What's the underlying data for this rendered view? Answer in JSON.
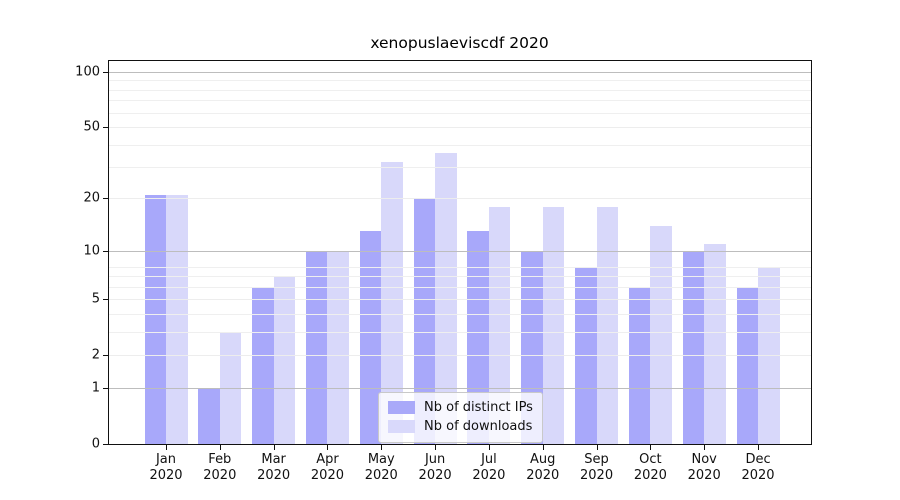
{
  "title": "xenopuslaeviscdf 2020",
  "chart_data": {
    "type": "bar",
    "title": "xenopuslaeviscdf 2020",
    "categories": [
      "Jan 2020",
      "Feb 2020",
      "Mar 2020",
      "Apr 2020",
      "May 2020",
      "Jun 2020",
      "Jul 2020",
      "Aug 2020",
      "Sep 2020",
      "Oct 2020",
      "Nov 2020",
      "Dec 2020"
    ],
    "x_tick_line1": [
      "Jan",
      "Feb",
      "Mar",
      "Apr",
      "May",
      "Jun",
      "Jul",
      "Aug",
      "Sep",
      "Oct",
      "Nov",
      "Dec"
    ],
    "x_tick_line2": [
      "2020",
      "2020",
      "2020",
      "2020",
      "2020",
      "2020",
      "2020",
      "2020",
      "2020",
      "2020",
      "2020",
      "2020"
    ],
    "series": [
      {
        "name": "Nb of distinct IPs",
        "swatch_color": "#a9a9f9",
        "bar_fill": "rgba(110,110,247,0.6)",
        "values": [
          21,
          1,
          6,
          10,
          13,
          20,
          13,
          10,
          8,
          6,
          10,
          6
        ]
      },
      {
        "name": "Nb of downloads",
        "swatch_color": "#d9d9fb",
        "bar_fill": "rgba(144,144,241,0.35)",
        "values": [
          21,
          3,
          7,
          10,
          32,
          36,
          18,
          18,
          18,
          14,
          11,
          8
        ]
      }
    ],
    "yscale": "log(1+x)",
    "ylim": [
      0,
      120
    ],
    "yticks": [
      0,
      1,
      2,
      5,
      10,
      20,
      50,
      100
    ],
    "grid": {
      "dark_lines": [
        1,
        10,
        100
      ],
      "light_lines": [
        2,
        5,
        20,
        50
      ],
      "minor_lines": [
        3,
        4,
        6,
        7,
        8,
        30,
        40,
        60,
        70,
        80,
        90
      ],
      "dark_color": "#bdbdbd",
      "light_color": "#ededed",
      "minor_color": "#efefef"
    },
    "legend_position": "lower center, inside axes"
  }
}
